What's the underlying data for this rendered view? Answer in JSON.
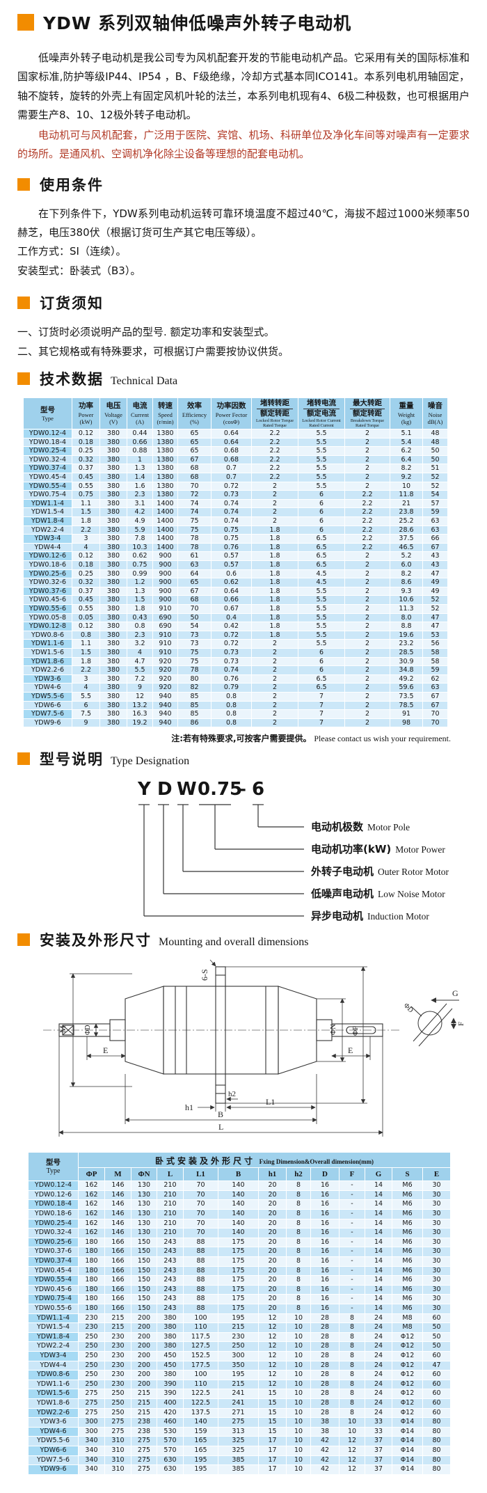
{
  "colors": {
    "accent_orange": "#F28C00",
    "red_text": "#B23A26",
    "table_header_blue": "#9FD1EC",
    "row_blue": "#CBE7F8",
    "row_light": "#EBF5FC",
    "type_col_blue": "#A6DAF4"
  },
  "doc": {
    "title": "YDW 系列双轴伸低噪声外转子电动机",
    "intro": {
      "p1": "低噪声外转子电动机是我公司专为风机配套开发的节能电动机产品。它采用有关的国际标准和国家标准,防护等级IP44、IP54 ，B、F级绝缘，冷却方式基本同ICO141。本系列电机用轴固定，轴不旋转，旋转的外壳上有固定风机叶轮的法兰，本系列电机现有4、6极二种极数，也可根据用户需要生产8、10、12极外转子电动机。",
      "p2": "电动机可与风机配套，广泛用于医院、宾馆、机场、科研单位及净化车间等对噪声有一定要求的场所。是通风机、空调机净化除尘设备等理想的配套电动机。"
    }
  },
  "usage": {
    "title": "使用条件",
    "p1": "在下列条件下，YDW系列电动机运转可靠环境温度不超过40℃，海拔不超过1000米频率50赫芝，电压380伏（根据订货可生产其它电压等级）。",
    "line1": "工作方式：SI（连续）。",
    "line2": "安装型式：卧装式（B3）。"
  },
  "ordering": {
    "title": "订货须知",
    "item1": "一、订货时必须说明产品的型号. 额定功率和安装型式。",
    "item2": "二、其它规格或有特殊要求，可根据订户需要按协议供货。"
  },
  "tech": {
    "title_cn": "技术数据",
    "title_en": "Technical Data",
    "note_cn": "注:若有特殊要求,可按客户需要提供。",
    "note_en": "Please contact us wish your requirement.",
    "headers": [
      {
        "cn": "型号",
        "en": "Type"
      },
      {
        "cn": "功率",
        "en": "Power",
        "unit": "(kW)"
      },
      {
        "cn": "电压",
        "en": "Voltage",
        "unit": "(V)"
      },
      {
        "cn": "电流",
        "en": "Current",
        "unit": "(A)"
      },
      {
        "cn": "转速",
        "en": "Speed",
        "unit": "(r/min)"
      },
      {
        "cn": "效率",
        "en": "Efficiency",
        "unit": "(%)"
      },
      {
        "cn": "功率因数",
        "en": "Power Fector",
        "unit": "(cosΦ)"
      },
      {
        "cn_top": "堵转转距",
        "cn_bottom": "额定转距",
        "en": "Locked Rotor Torque Rated Torque"
      },
      {
        "cn_top": "堵转电流",
        "cn_bottom": "额定电流",
        "en": "Locked Rotor Current Rated Current"
      },
      {
        "cn_top": "最大转距",
        "cn_bottom": "额定转距",
        "en": "Breakdown Torque Rated Torque"
      },
      {
        "cn": "重量",
        "en": "Weight",
        "unit": "(kg)"
      },
      {
        "cn": "噪音",
        "en": "Noise",
        "unit": "dB(A)"
      }
    ],
    "rows": [
      [
        "YDW0.12-4",
        "0.12",
        "380",
        "0.44",
        "1380",
        "65",
        "0.64",
        "2.2",
        "5.5",
        "2",
        "5.1",
        "48"
      ],
      [
        "YDW0.18-4",
        "0.18",
        "380",
        "0.66",
        "1380",
        "65",
        "0.64",
        "2.2",
        "5.5",
        "2",
        "5.4",
        "48"
      ],
      [
        "YDW0.25-4",
        "0.25",
        "380",
        "0.88",
        "1380",
        "65",
        "0.68",
        "2.2",
        "5.5",
        "2",
        "6.2",
        "50"
      ],
      [
        "YDW0.32-4",
        "0.32",
        "380",
        "1",
        "1380",
        "67",
        "0.68",
        "2.2",
        "5.5",
        "2",
        "6.4",
        "50"
      ],
      [
        "YDW0.37-4",
        "0.37",
        "380",
        "1.3",
        "1380",
        "68",
        "0.7",
        "2.2",
        "5.5",
        "2",
        "8.2",
        "51"
      ],
      [
        "YDW0.45-4",
        "0.45",
        "380",
        "1.4",
        "1380",
        "68",
        "0.7",
        "2.2",
        "5.5",
        "2",
        "9.2",
        "52"
      ],
      [
        "YDW0.55-4",
        "0.55",
        "380",
        "1.6",
        "1380",
        "70",
        "0.72",
        "2",
        "5.5",
        "2",
        "10",
        "52"
      ],
      [
        "YDW0.75-4",
        "0.75",
        "380",
        "2.3",
        "1380",
        "72",
        "0.73",
        "2",
        "6",
        "2.2",
        "11.8",
        "54"
      ],
      [
        "YDW1.1-4",
        "1.1",
        "380",
        "3.1",
        "1400",
        "74",
        "0.74",
        "2",
        "6",
        "2.2",
        "21",
        "57"
      ],
      [
        "YDW1.5-4",
        "1.5",
        "380",
        "4.2",
        "1400",
        "74",
        "0.74",
        "2",
        "6",
        "2.2",
        "23.8",
        "59"
      ],
      [
        "YDW1.8-4",
        "1.8",
        "380",
        "4.9",
        "1400",
        "75",
        "0.74",
        "2",
        "6",
        "2.2",
        "25.2",
        "63"
      ],
      [
        "YDW2.2-4",
        "2.2",
        "380",
        "5.9",
        "1400",
        "75",
        "0.75",
        "1.8",
        "6",
        "2.2",
        "28.6",
        "63"
      ],
      [
        "YDW3-4",
        "3",
        "380",
        "7.8",
        "1400",
        "78",
        "0.75",
        "1.8",
        "6.5",
        "2.2",
        "37.5",
        "66"
      ],
      [
        "YDW4-4",
        "4",
        "380",
        "10.3",
        "1400",
        "78",
        "0.76",
        "1.8",
        "6.5",
        "2.2",
        "46.5",
        "67"
      ],
      [
        "YDW0.12-6",
        "0.12",
        "380",
        "0.62",
        "900",
        "61",
        "0.57",
        "1.8",
        "6.5",
        "2",
        "5.2",
        "43"
      ],
      [
        "YDW0.18-6",
        "0.18",
        "380",
        "0.75",
        "900",
        "63",
        "0.57",
        "1.8",
        "6.5",
        "2",
        "6.0",
        "43"
      ],
      [
        "YDW0.25-6",
        "0.25",
        "380",
        "0.99",
        "900",
        "64",
        "0.6",
        "1.8",
        "4.5",
        "2",
        "8.2",
        "47"
      ],
      [
        "YDW0.32-6",
        "0.32",
        "380",
        "1.2",
        "900",
        "65",
        "0.62",
        "1.8",
        "4.5",
        "2",
        "8.6",
        "49"
      ],
      [
        "YDW0.37-6",
        "0.37",
        "380",
        "1.3",
        "900",
        "67",
        "0.64",
        "1.8",
        "5.5",
        "2",
        "9.3",
        "49"
      ],
      [
        "YDW0.45-6",
        "0.45",
        "380",
        "1.5",
        "900",
        "68",
        "0.66",
        "1.8",
        "5.5",
        "2",
        "10.6",
        "52"
      ],
      [
        "YDW0.55-6",
        "0.55",
        "380",
        "1.8",
        "910",
        "70",
        "0.67",
        "1.8",
        "5.5",
        "2",
        "11.3",
        "52"
      ],
      [
        "YDW0.05-8",
        "0.05",
        "380",
        "0.43",
        "690",
        "50",
        "0.4",
        "1.8",
        "5.5",
        "2",
        "8.0",
        "47"
      ],
      [
        "YDW0.12-8",
        "0.12",
        "380",
        "0.8",
        "690",
        "54",
        "0.42",
        "1.8",
        "5.5",
        "2",
        "8.8",
        "47"
      ],
      [
        "YDW0.8-6",
        "0.8",
        "380",
        "2.3",
        "910",
        "73",
        "0.72",
        "1.8",
        "5.5",
        "2",
        "19.6",
        "53"
      ],
      [
        "YDW1.1-6",
        "1.1",
        "380",
        "3.2",
        "910",
        "73",
        "0.72",
        "2",
        "5.5",
        "2",
        "23.2",
        "56"
      ],
      [
        "YDW1.5-6",
        "1.5",
        "380",
        "4",
        "910",
        "75",
        "0.73",
        "2",
        "6",
        "2",
        "28.5",
        "58"
      ],
      [
        "YDW1.8-6",
        "1.8",
        "380",
        "4.7",
        "920",
        "75",
        "0.73",
        "2",
        "6",
        "2",
        "30.9",
        "58"
      ],
      [
        "YDW2.2-6",
        "2.2",
        "380",
        "5.5",
        "920",
        "78",
        "0.74",
        "2",
        "6",
        "2",
        "34.8",
        "59"
      ],
      [
        "YDW3-6",
        "3",
        "380",
        "7.2",
        "920",
        "80",
        "0.76",
        "2",
        "6.5",
        "2",
        "49.2",
        "62"
      ],
      [
        "YDW4-6",
        "4",
        "380",
        "9",
        "920",
        "82",
        "0.79",
        "2",
        "6.5",
        "2",
        "59.6",
        "63"
      ],
      [
        "YDW5.5-6",
        "5.5",
        "380",
        "12",
        "940",
        "85",
        "0.8",
        "2",
        "7",
        "2",
        "73.5",
        "67"
      ],
      [
        "YDW6-6",
        "6",
        "380",
        "13.2",
        "940",
        "85",
        "0.8",
        "2",
        "7",
        "2",
        "78.5",
        "67"
      ],
      [
        "YDW7.5-6",
        "7.5",
        "380",
        "16.3",
        "940",
        "85",
        "0.8",
        "2",
        "7",
        "2",
        "91",
        "70"
      ],
      [
        "YDW9-6",
        "9",
        "380",
        "19.2",
        "940",
        "86",
        "0.8",
        "2",
        "7",
        "2",
        "98",
        "70"
      ]
    ]
  },
  "designation": {
    "title_cn": "型号说明",
    "title_en": "Type Designation",
    "parts": [
      "Y",
      "D",
      "W",
      "0.75",
      "–",
      "6"
    ],
    "labels": [
      {
        "cn": "电动机极数",
        "en": "Motor Pole"
      },
      {
        "cn": "电动机功率(kW)",
        "en": "Motor Power"
      },
      {
        "cn": "外转子电动机",
        "en": "Outer Rotor Motor"
      },
      {
        "cn": "低噪声电动机",
        "en": "Low Noise Motor"
      },
      {
        "cn": "异步电动机",
        "en": "Induction Motor"
      }
    ]
  },
  "mounting": {
    "title_cn": "安装及外形尺寸",
    "title_en": "Mounting and overall dimensions",
    "drawing": {
      "six_s": "6-S",
      "m": "M",
      "phi_d": "ΦD",
      "e_left": "E",
      "e_right": "E",
      "phi_n": "ΦN",
      "phi_p": "ΦP",
      "h1": "h1",
      "h2": "h2",
      "l1": "L1",
      "b": "B",
      "l": "L",
      "g": "G",
      "f": "F",
      "phi_d2": "ΦD"
    },
    "table": {
      "col_type_cn": "型号",
      "col_type_en": "Type",
      "group_cn": "卧式安装及外形尺寸",
      "group_en": "Fxing Dimension&Overall dimension(mm)",
      "cols": [
        "ΦP",
        "M",
        "ΦN",
        "L",
        "L1",
        "B",
        "h1",
        "h2",
        "D",
        "F",
        "G",
        "S",
        "E"
      ],
      "rows": [
        [
          "YDW0.12-4",
          "162",
          "146",
          "130",
          "210",
          "70",
          "140",
          "20",
          "8",
          "16",
          "-",
          "14",
          "M6",
          "30"
        ],
        [
          "YDW0.12-6",
          "162",
          "146",
          "130",
          "210",
          "70",
          "140",
          "20",
          "8",
          "16",
          "-",
          "14",
          "M6",
          "30"
        ],
        [
          "YDW0.18-4",
          "162",
          "146",
          "130",
          "210",
          "70",
          "140",
          "20",
          "8",
          "16",
          "-",
          "14",
          "M6",
          "30"
        ],
        [
          "YDW0.18-6",
          "162",
          "146",
          "130",
          "210",
          "70",
          "140",
          "20",
          "8",
          "16",
          "-",
          "14",
          "M6",
          "30"
        ],
        [
          "YDW0.25-4",
          "162",
          "146",
          "130",
          "210",
          "70",
          "140",
          "20",
          "8",
          "16",
          "-",
          "14",
          "M6",
          "30"
        ],
        [
          "YDW0.32-4",
          "162",
          "146",
          "130",
          "210",
          "70",
          "140",
          "20",
          "8",
          "16",
          "-",
          "14",
          "M6",
          "30"
        ],
        [
          "YDW0.25-6",
          "180",
          "166",
          "150",
          "243",
          "88",
          "175",
          "20",
          "8",
          "16",
          "-",
          "14",
          "M6",
          "30"
        ],
        [
          "YDW0.37-6",
          "180",
          "166",
          "150",
          "243",
          "88",
          "175",
          "20",
          "8",
          "16",
          "-",
          "14",
          "M6",
          "30"
        ],
        [
          "YDW0.37-4",
          "180",
          "166",
          "150",
          "243",
          "88",
          "175",
          "20",
          "8",
          "16",
          "-",
          "14",
          "M6",
          "30"
        ],
        [
          "YDW0.45-4",
          "180",
          "166",
          "150",
          "243",
          "88",
          "175",
          "20",
          "8",
          "16",
          "-",
          "14",
          "M6",
          "30"
        ],
        [
          "YDW0.55-4",
          "180",
          "166",
          "150",
          "243",
          "88",
          "175",
          "20",
          "8",
          "16",
          "-",
          "14",
          "M6",
          "30"
        ],
        [
          "YDW0.45-6",
          "180",
          "166",
          "150",
          "243",
          "88",
          "175",
          "20",
          "8",
          "16",
          "-",
          "14",
          "M6",
          "30"
        ],
        [
          "YDW0.75-4",
          "180",
          "166",
          "150",
          "243",
          "88",
          "175",
          "20",
          "8",
          "16",
          "-",
          "14",
          "M6",
          "30"
        ],
        [
          "YDW0.55-6",
          "180",
          "166",
          "150",
          "243",
          "88",
          "175",
          "20",
          "8",
          "16",
          "-",
          "14",
          "M6",
          "30"
        ],
        [
          "YDW1.1-4",
          "230",
          "215",
          "200",
          "380",
          "100",
          "195",
          "12",
          "10",
          "28",
          "8",
          "24",
          "M8",
          "60"
        ],
        [
          "YDW1.5-4",
          "230",
          "215",
          "200",
          "380",
          "110",
          "215",
          "12",
          "10",
          "28",
          "8",
          "24",
          "M8",
          "50"
        ],
        [
          "YDW1.8-4",
          "250",
          "230",
          "200",
          "380",
          "117.5",
          "230",
          "12",
          "10",
          "28",
          "8",
          "24",
          "Φ12",
          "50"
        ],
        [
          "YDW2.2-4",
          "250",
          "230",
          "200",
          "380",
          "127.5",
          "250",
          "12",
          "10",
          "28",
          "8",
          "24",
          "Φ12",
          "50"
        ],
        [
          "YDW3-4",
          "250",
          "230",
          "200",
          "450",
          "152.5",
          "300",
          "12",
          "10",
          "28",
          "8",
          "24",
          "Φ12",
          "60"
        ],
        [
          "YDW4-4",
          "250",
          "230",
          "200",
          "450",
          "177.5",
          "350",
          "12",
          "10",
          "28",
          "8",
          "24",
          "Φ12",
          "47"
        ],
        [
          "YDW0.8-6",
          "250",
          "230",
          "200",
          "380",
          "100",
          "195",
          "12",
          "10",
          "28",
          "8",
          "24",
          "Φ12",
          "60"
        ],
        [
          "YDW1.1-6",
          "250",
          "230",
          "200",
          "390",
          "110",
          "215",
          "12",
          "10",
          "28",
          "8",
          "24",
          "Φ12",
          "60"
        ],
        [
          "YDW1.5-6",
          "275",
          "250",
          "215",
          "390",
          "122.5",
          "241",
          "15",
          "10",
          "28",
          "8",
          "24",
          "Φ12",
          "60"
        ],
        [
          "YDW1.8-6",
          "275",
          "250",
          "215",
          "400",
          "122.5",
          "241",
          "15",
          "10",
          "28",
          "8",
          "24",
          "Φ12",
          "60"
        ],
        [
          "YDW2.2-6",
          "275",
          "250",
          "215",
          "420",
          "137.5",
          "271",
          "15",
          "10",
          "28",
          "8",
          "24",
          "Φ12",
          "60"
        ],
        [
          "YDW3-6",
          "300",
          "275",
          "238",
          "460",
          "140",
          "275",
          "15",
          "10",
          "38",
          "10",
          "33",
          "Φ14",
          "80"
        ],
        [
          "YDW4-6",
          "300",
          "275",
          "238",
          "530",
          "159",
          "313",
          "15",
          "10",
          "38",
          "10",
          "33",
          "Φ14",
          "80"
        ],
        [
          "YDW5.5-6",
          "340",
          "310",
          "275",
          "570",
          "165",
          "325",
          "17",
          "10",
          "42",
          "12",
          "37",
          "Φ14",
          "80"
        ],
        [
          "YDW6-6",
          "340",
          "310",
          "275",
          "570",
          "165",
          "325",
          "17",
          "10",
          "42",
          "12",
          "37",
          "Φ14",
          "80"
        ],
        [
          "YDW7.5-6",
          "340",
          "310",
          "275",
          "630",
          "195",
          "385",
          "17",
          "10",
          "42",
          "12",
          "37",
          "Φ14",
          "80"
        ],
        [
          "YDW9-6",
          "340",
          "310",
          "275",
          "630",
          "195",
          "385",
          "17",
          "10",
          "42",
          "12",
          "37",
          "Φ14",
          "80"
        ]
      ]
    }
  }
}
